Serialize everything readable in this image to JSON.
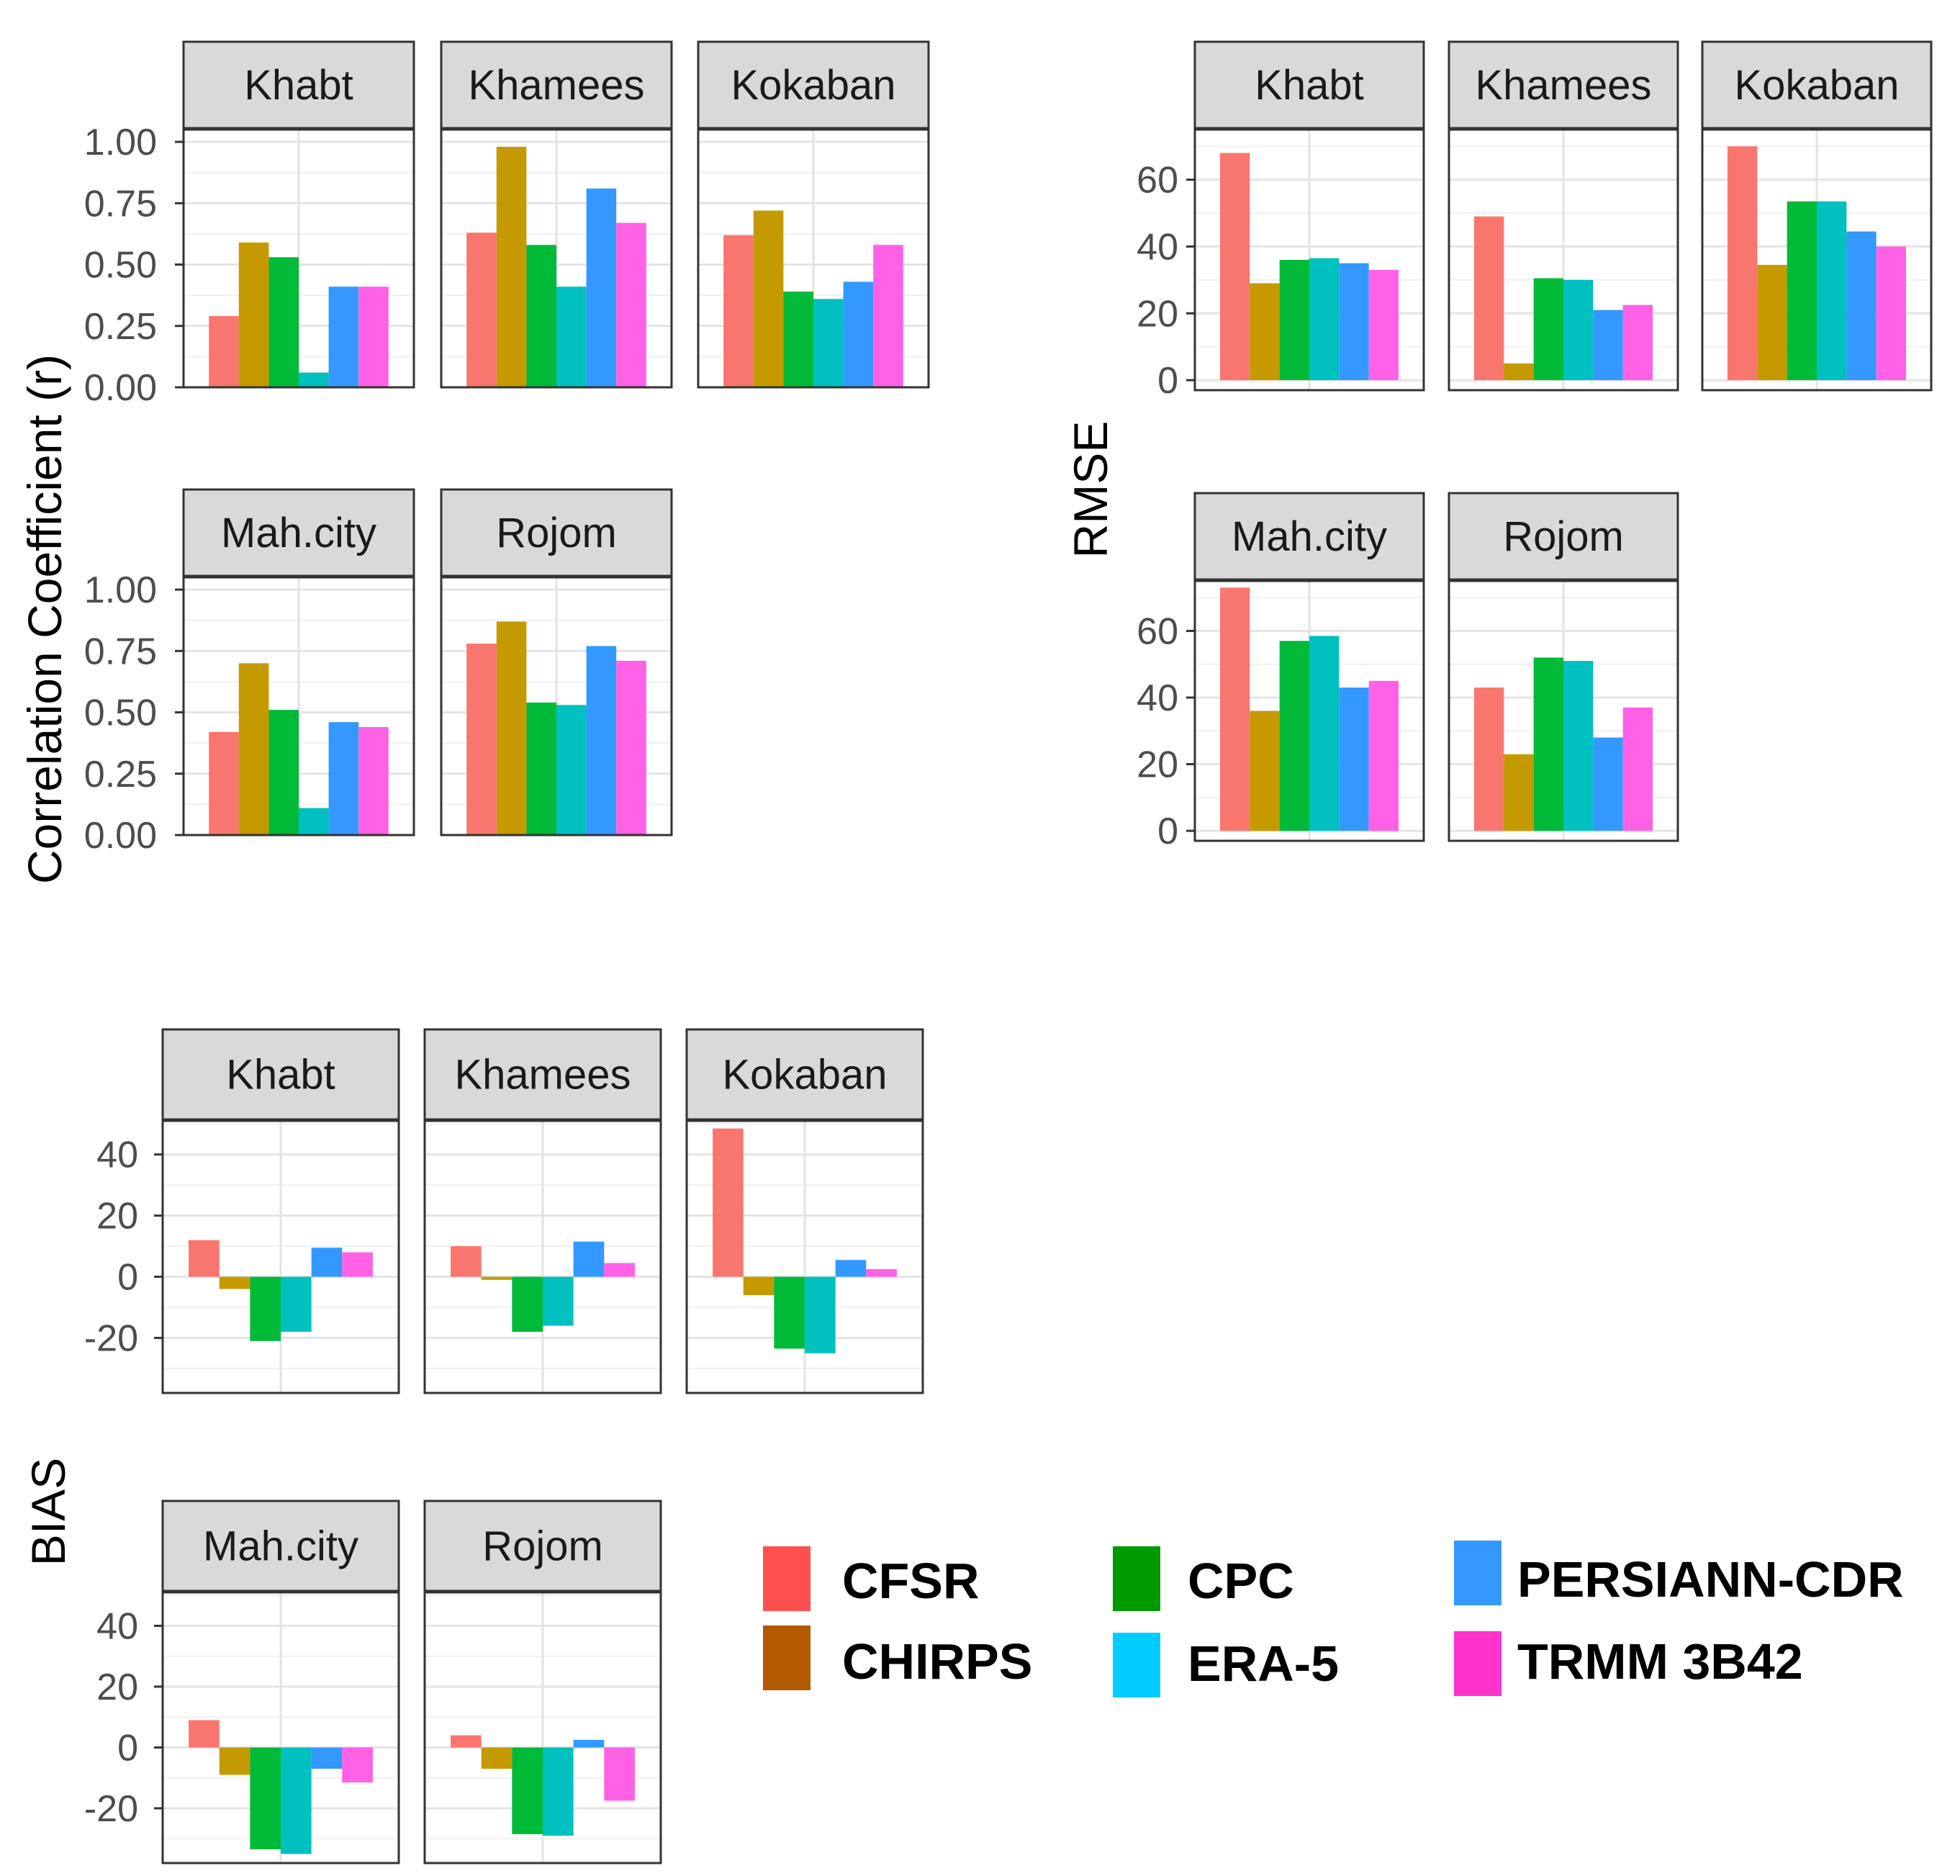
{
  "series_order": [
    "CFSR",
    "CHIRPS",
    "CPC",
    "ERA-5",
    "PERSIANN-CDR",
    "TRMM 3B42"
  ],
  "bar_colors": [
    "#f8766d",
    "#c49a00",
    "#00ba38",
    "#00c0c0",
    "#3399ff",
    "#ff61e6"
  ],
  "legend": {
    "items": [
      {
        "label": "CFSR",
        "color": "#ff5050"
      },
      {
        "label": "CHIRPS",
        "color": "#b35900"
      },
      {
        "label": "CPC",
        "color": "#009900"
      },
      {
        "label": "ERA-5",
        "color": "#00ccff"
      },
      {
        "label": "PERSIANN-CDR",
        "color": "#3399ff"
      },
      {
        "label": "TRMM 3B42",
        "color": "#ff33cc"
      }
    ]
  },
  "chart_data": [
    {
      "type": "bar",
      "title": "",
      "ylabel": "Correlation Coefficient (r)",
      "ylim": [
        0,
        1.05
      ],
      "yticks": [
        "0.00",
        "0.25",
        "0.50",
        "0.75",
        "1.00"
      ],
      "ytick_values": [
        0,
        0.25,
        0.5,
        0.75,
        1.0
      ],
      "panels": [
        {
          "label": "Khabt",
          "values": [
            0.29,
            0.59,
            0.53,
            0.06,
            0.41,
            0.41
          ]
        },
        {
          "label": "Khamees",
          "values": [
            0.63,
            0.98,
            0.58,
            0.41,
            0.81,
            0.67
          ]
        },
        {
          "label": "Kokaban",
          "values": [
            0.62,
            0.72,
            0.39,
            0.36,
            0.43,
            0.58
          ]
        },
        {
          "label": "Mah.city",
          "values": [
            0.42,
            0.7,
            0.51,
            0.11,
            0.46,
            0.44
          ]
        },
        {
          "label": "Rojom",
          "values": [
            0.78,
            0.87,
            0.54,
            0.53,
            0.77,
            0.71
          ]
        }
      ]
    },
    {
      "type": "bar",
      "title": "",
      "ylabel": "RMSE",
      "ylim": [
        -3,
        75
      ],
      "yticks": [
        "0",
        "20",
        "40",
        "60"
      ],
      "ytick_values": [
        0,
        20,
        40,
        60
      ],
      "panels": [
        {
          "label": "Khabt",
          "values": [
            68,
            29,
            36,
            36.5,
            35,
            33
          ]
        },
        {
          "label": "Khamees",
          "values": [
            49,
            5,
            30.5,
            30,
            21,
            22.5
          ]
        },
        {
          "label": "Kokaban",
          "values": [
            70,
            34.5,
            53.5,
            53.5,
            44.5,
            40
          ]
        },
        {
          "label": "Mah.city",
          "values": [
            73,
            36,
            57,
            58.5,
            43,
            45
          ]
        },
        {
          "label": "Rojom",
          "values": [
            43,
            23,
            52,
            51,
            28,
            37
          ]
        }
      ]
    },
    {
      "type": "bar",
      "title": "",
      "ylabel": "BIAS",
      "ylim": [
        -38,
        51
      ],
      "yticks": [
        "-20",
        "0",
        "20",
        "40"
      ],
      "ytick_values": [
        -20,
        0,
        20,
        40
      ],
      "panels": [
        {
          "label": "Khabt",
          "values": [
            12,
            -4,
            -21,
            -18,
            9.5,
            8
          ]
        },
        {
          "label": "Khamees",
          "values": [
            10,
            -1,
            -18,
            -16,
            11.5,
            4.5
          ]
        },
        {
          "label": "Kokaban",
          "values": [
            48.5,
            -6,
            -23.5,
            -25,
            5.5,
            2.5
          ]
        },
        {
          "label": "Mah.city",
          "values": [
            9,
            -9,
            -33.5,
            -35,
            -7,
            -11.5
          ]
        },
        {
          "label": "Rojom",
          "values": [
            4,
            -7,
            -28.5,
            -29,
            2.5,
            -17.5
          ]
        }
      ]
    }
  ]
}
